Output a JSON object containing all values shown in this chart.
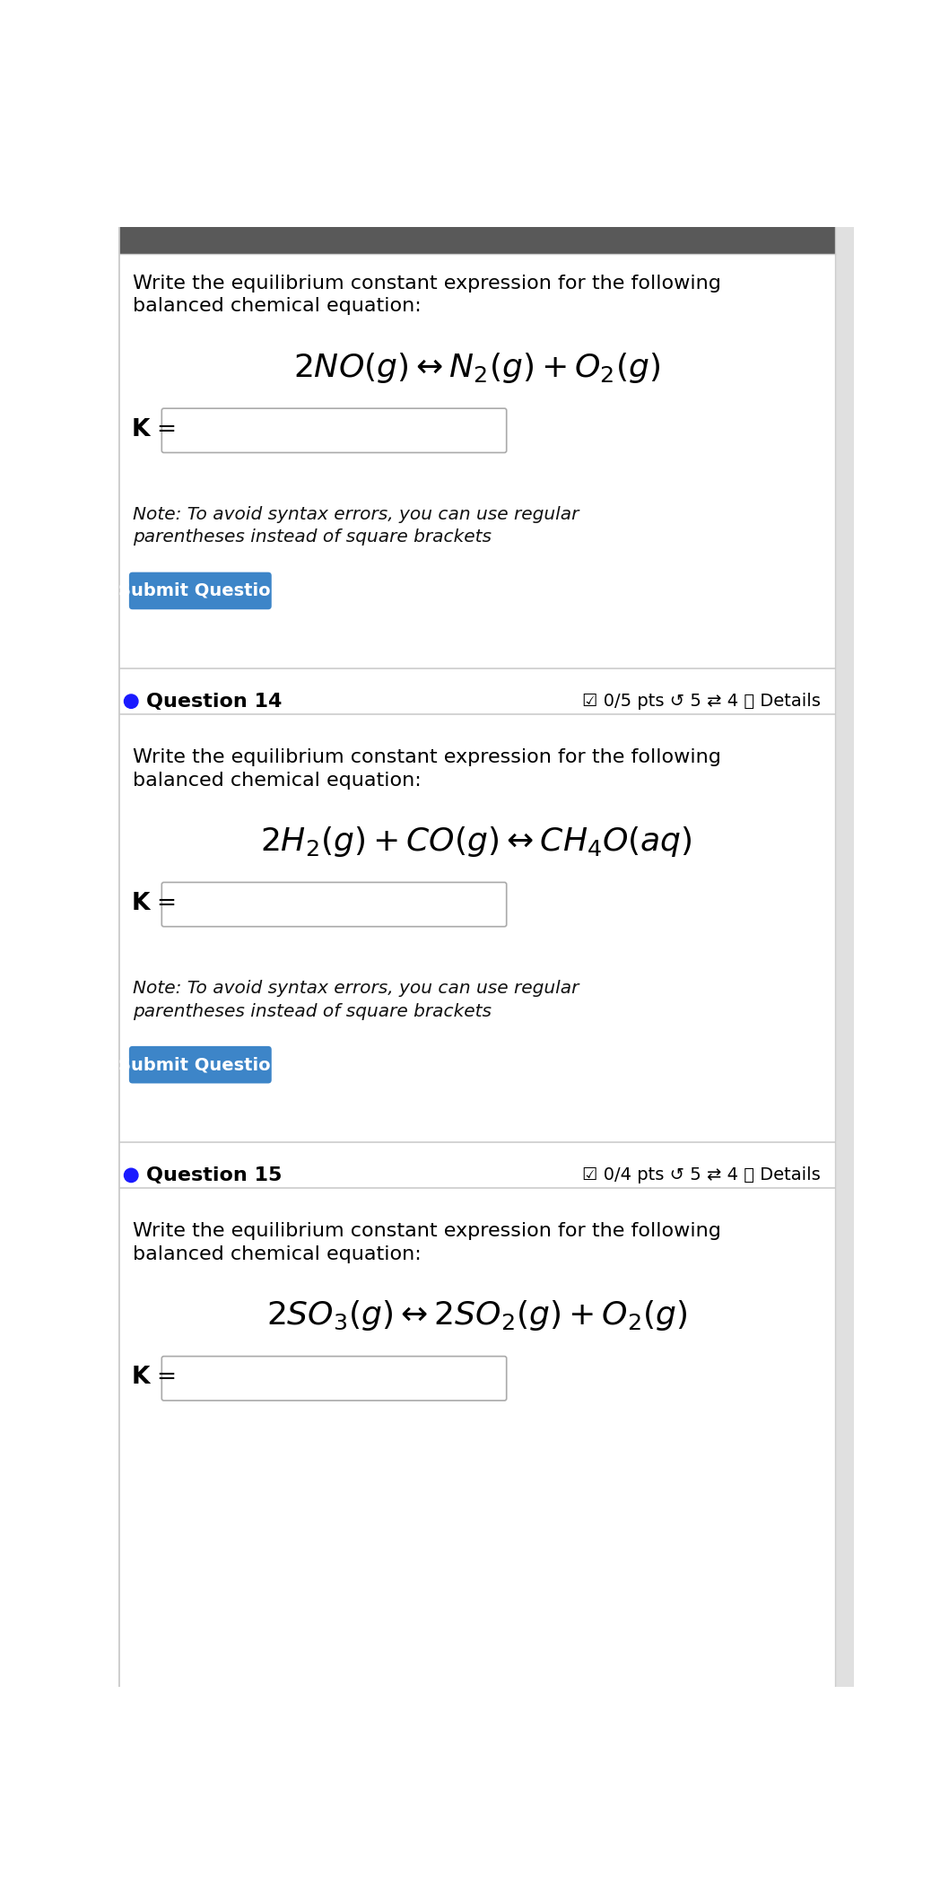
{
  "bg_color": "#ffffff",
  "border_color": "#cccccc",
  "separator_color": "#cccccc",
  "header_bg": "#595959",
  "question_dot_color": "#1a1aff",
  "button_color": "#3d85c8",
  "button_text_color": "#ffffff",
  "input_box_color": "#ffffff",
  "input_box_border": "#aaaaaa",
  "text_color": "#000000",
  "note_color": "#111111",
  "right_bar_color": "#e0e0e0",
  "sections": [
    {
      "prompt": "Write the equilibrium constant expression for the following\nbalanced chemical equation:",
      "equation": "$2NO(g) \\leftrightarrow N_2(g) + O_2(g)$",
      "note": "Note: To avoid syntax errors, you can use regular\nparentheses instead of square brackets",
      "has_button": true,
      "question_header": null,
      "question_pts": null
    },
    {
      "prompt": "Write the equilibrium constant expression for the following\nbalanced chemical equation:",
      "equation": "$2H_2(g) + CO(g) \\leftrightarrow CH_4O(aq)$",
      "note": "Note: To avoid syntax errors, you can use regular\nparentheses instead of square brackets",
      "has_button": true,
      "question_header": "Question 14",
      "question_pts": "☑ 0/5 pts ↺ 5 ⇄ 4 ⓘ Details"
    },
    {
      "prompt": "Write the equilibrium constant expression for the following\nbalanced chemical equation:",
      "equation": "$2SO_3(g) \\leftrightarrow 2SO_2(g) + O_2(g)$",
      "note": null,
      "has_button": false,
      "question_header": "Question 15",
      "question_pts": "☑ 0/4 pts ↺ 5 ⇄ 4 ⓘ Details"
    }
  ]
}
